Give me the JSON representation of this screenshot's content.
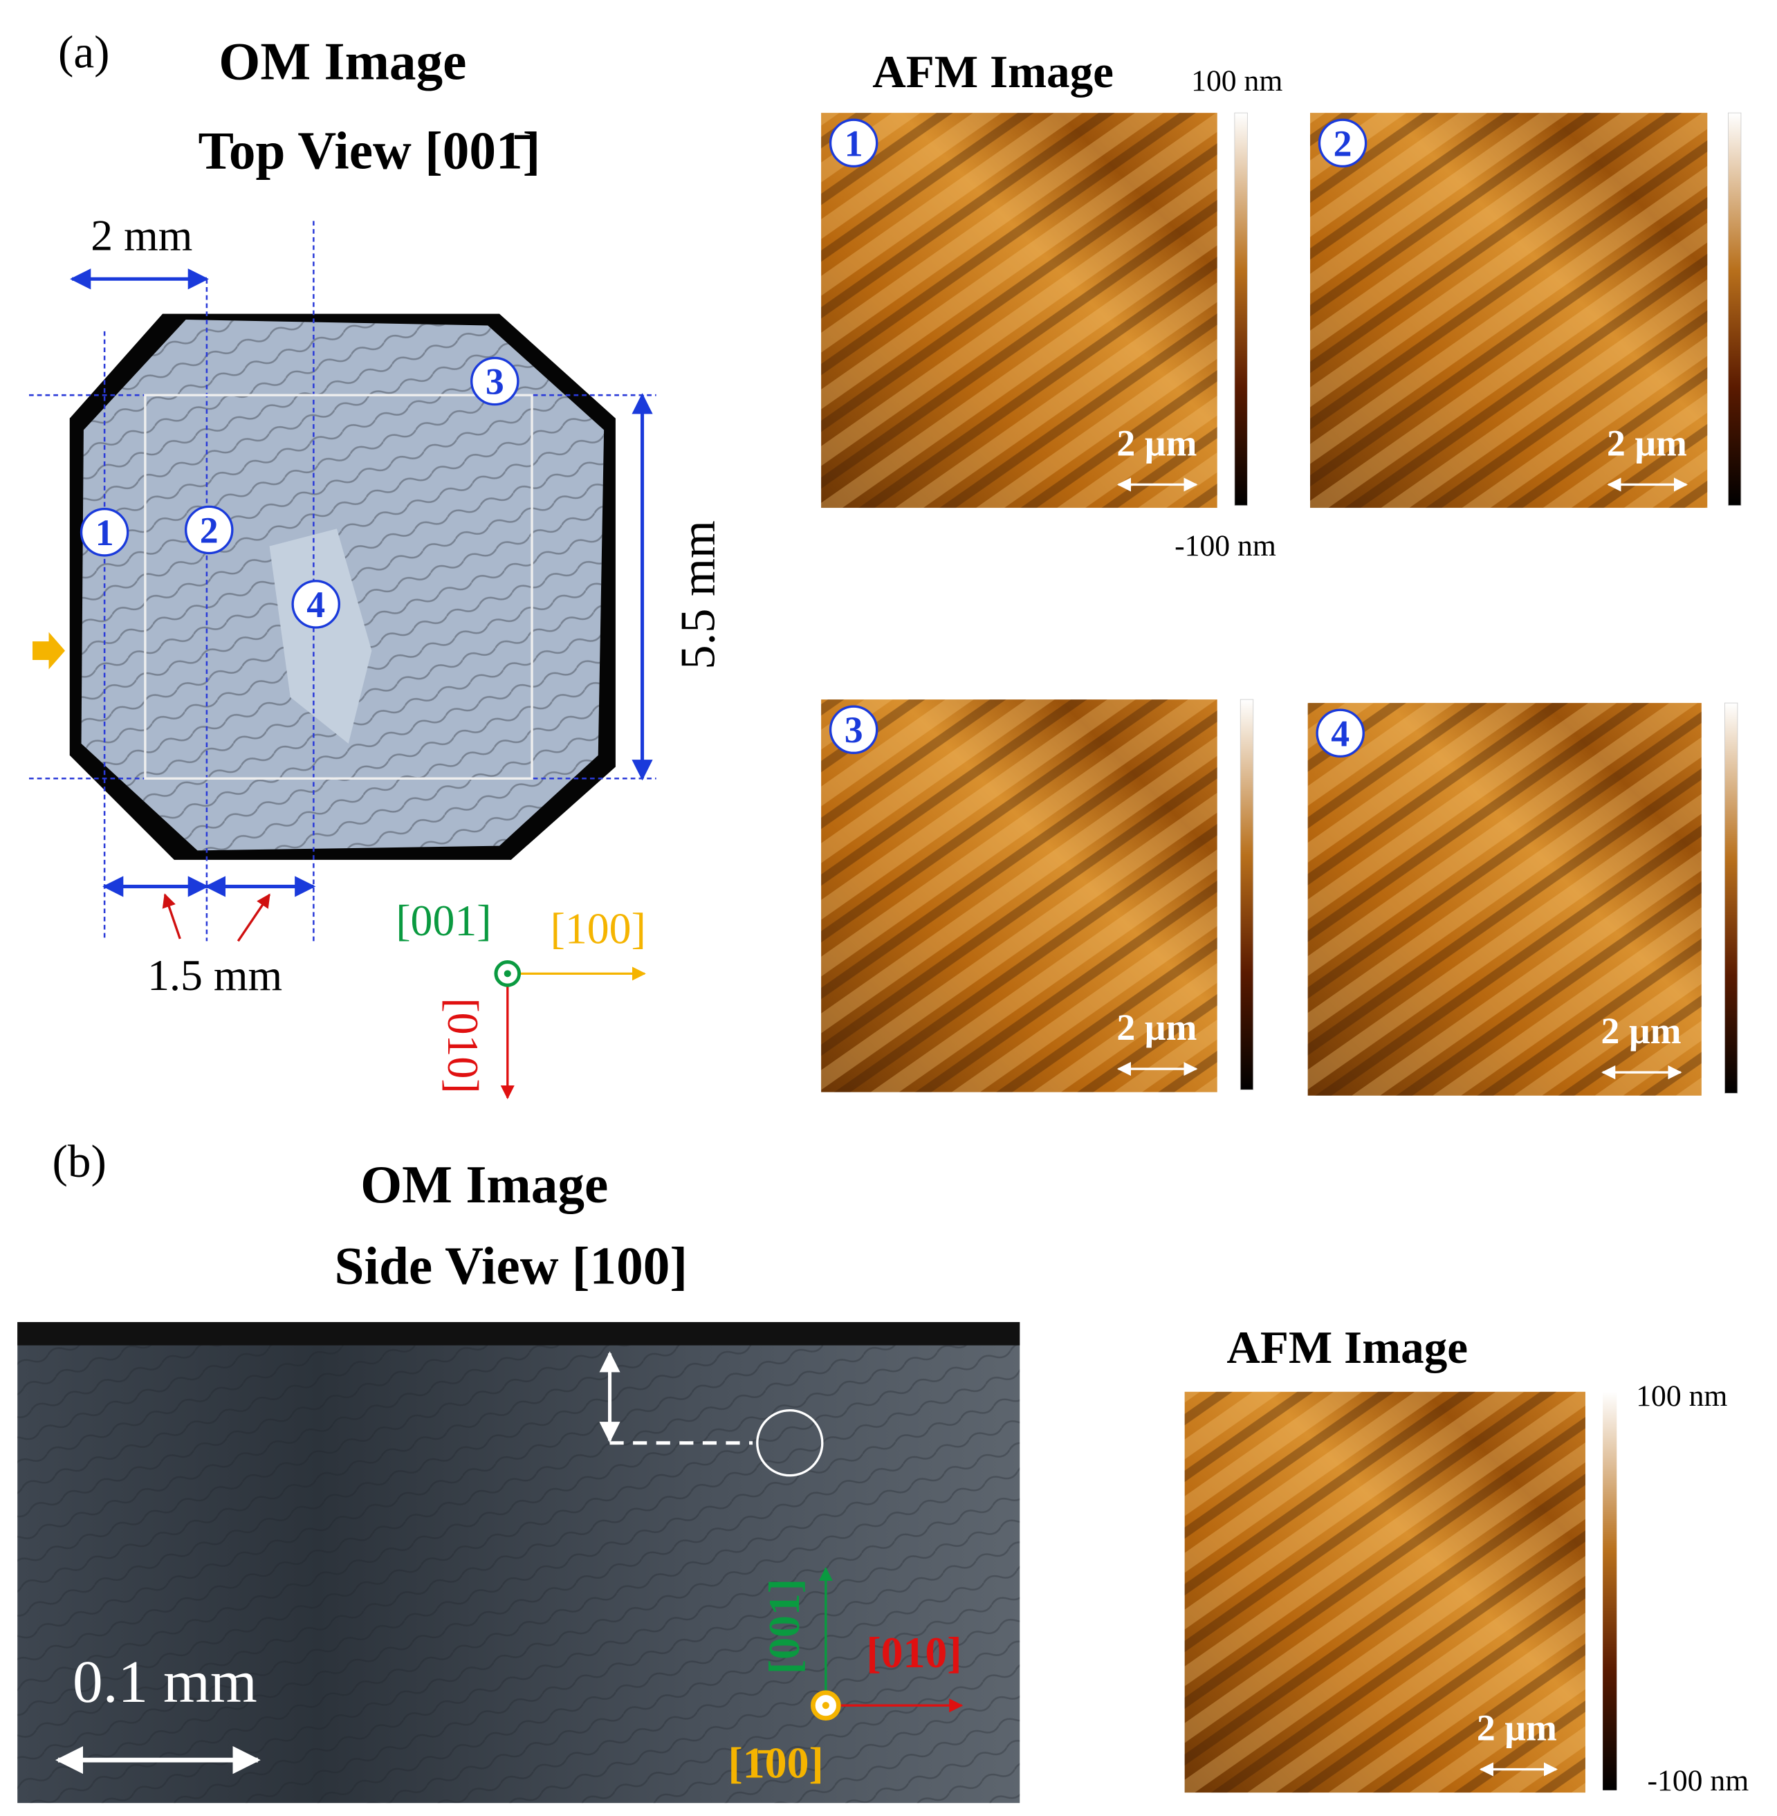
{
  "panel_a": {
    "label": "(a)",
    "om_title": "OM Image",
    "om_subtitle": "Top View [001̄]",
    "width_label": "2 mm",
    "height_label": "5.5 mm",
    "spacing_label": "1.5 mm",
    "markers": [
      "1",
      "2",
      "3",
      "4"
    ],
    "axes": {
      "out": "[001]",
      "right": "[100]",
      "down": "[010]"
    },
    "afm_title": "AFM Image",
    "colorbar_max": "100 nm",
    "colorbar_min": "-100 nm",
    "afm_panels": [
      {
        "marker": "1",
        "scale": "2 µm"
      },
      {
        "marker": "2",
        "scale": "2 µm"
      },
      {
        "marker": "3",
        "scale": "2 µm"
      },
      {
        "marker": "4",
        "scale": "2 µm"
      }
    ]
  },
  "panel_b": {
    "label": "(b)",
    "om_title": "OM Image",
    "om_subtitle": "Side View [100]",
    "scale_label": "0.1 mm",
    "axes": {
      "up": "[001]",
      "right": "[010]",
      "out": "[1̄00]"
    },
    "afm_title": "AFM Image",
    "colorbar_max": "100 nm",
    "colorbar_min": "-100 nm",
    "afm_scale": "2 µm"
  }
}
